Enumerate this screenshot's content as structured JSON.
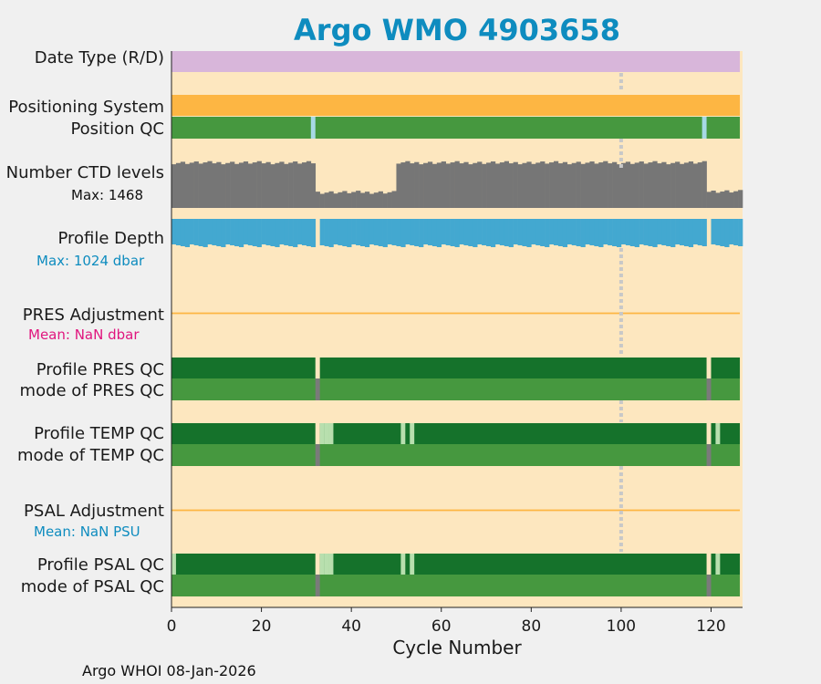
{
  "chart_data": {
    "type": "timeline-panels",
    "title": "Argo WMO 4903658",
    "xlabel": "Cycle Number",
    "xlim": [
      0,
      127
    ],
    "xticks": [
      0,
      20,
      40,
      60,
      80,
      100,
      120
    ],
    "reference_line_x": 100,
    "footer": "Argo WHOI 08-Jan-2026",
    "colors": {
      "background": "#fde7bf",
      "title": "#0e8cbf",
      "date_type": "#d8b6da",
      "positioning": "#fdb643",
      "qc_good": "#46983f",
      "qc_dark": "#15722b",
      "qc_light": "#b8dfae",
      "qc_light_blue": "#a7d9e6",
      "qc_gray": "#7a7a7a",
      "ctd": "#767676",
      "depth": "#43a8d0",
      "adjust_line": "#fdb643",
      "pres_mean": "#e0167e",
      "psal_mean": "#0e8cbf",
      "ref_line": "#c8c8c8"
    },
    "labels": {
      "date_type": "Date Type (R/D)",
      "positioning": "Positioning System",
      "position_qc": "Position QC",
      "ctd_levels": "Number CTD levels",
      "ctd_max": "Max: 1468",
      "profile_depth": "Profile Depth",
      "depth_max": "Max: 1024 dbar",
      "pres_adj": "PRES Adjustment",
      "pres_mean": "Mean:  NaN dbar",
      "profile_pres_qc": "Profile PRES QC",
      "mode_pres_qc": "mode of PRES QC",
      "profile_temp_qc": "Profile TEMP QC",
      "mode_temp_qc": "mode of TEMP QC",
      "psal_adj": "PSAL Adjustment",
      "psal_mean": "Mean:  NaN PSU",
      "profile_psal_qc": "Profile PSAL QC",
      "mode_psal_qc": "mode of PSAL QC"
    },
    "ctd_levels": {
      "max": 1468,
      "segments": [
        {
          "from": 0,
          "to": 31,
          "approx": 1300
        },
        {
          "from": 32,
          "to": 49,
          "approx": 450
        },
        {
          "from": 50,
          "to": 118,
          "approx": 1300
        },
        {
          "from": 119,
          "to": 126,
          "approx": 480
        }
      ]
    },
    "missing_cycles": [
      32,
      119
    ],
    "position_qc_light_cycles": [
      31,
      118
    ],
    "qc_rows": {
      "profile_pres": {
        "gaps": [
          32,
          119
        ]
      },
      "mode_pres": {
        "gray": [
          32,
          119
        ]
      },
      "profile_temp": {
        "gaps": [
          32,
          119
        ],
        "light": [
          33,
          34,
          35,
          51,
          53,
          121
        ]
      },
      "mode_temp": {
        "gray": [
          32,
          119
        ]
      },
      "profile_psal": {
        "gaps": [
          32,
          119
        ],
        "light": [
          0,
          33,
          34,
          35,
          51,
          53,
          121
        ]
      },
      "mode_psal": {
        "gray": [
          32,
          119
        ]
      }
    }
  }
}
